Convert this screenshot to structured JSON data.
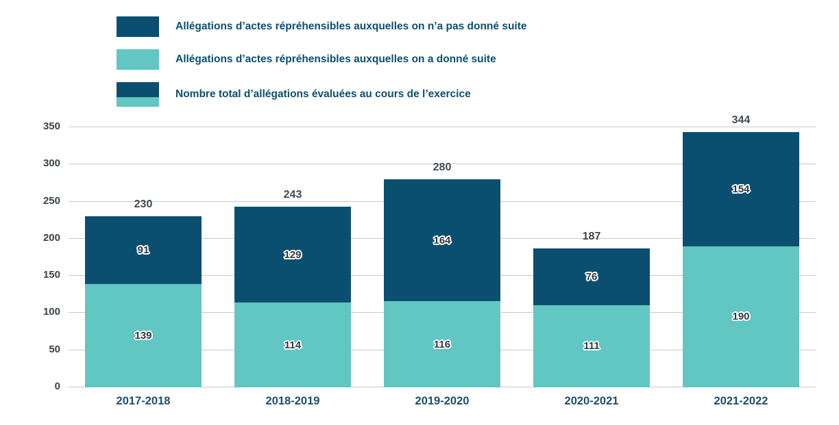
{
  "colors": {
    "dark_blue": "#0b4f70",
    "teal": "#62c6c3",
    "gridline": "#c9c9c9",
    "axis_text": "#3a4249",
    "total_text": "#3f4a52",
    "xlabel_text": "#1c4f68"
  },
  "legend": {
    "items": [
      {
        "label": "Allégations d’actes répréhensibles auxquelles on n’a pas donné suite",
        "swatch": "dark",
        "color": "#0b4f70"
      },
      {
        "label": "Allégations d’actes répréhensibles auxquelles on a donné suite",
        "swatch": "teal",
        "color": "#62c6c3"
      },
      {
        "label": "Nombre total d’allégations évaluées au cours de l’exercice",
        "swatch": "stacked",
        "colors": [
          "#0b4f70",
          "#62c6c3"
        ]
      }
    ]
  },
  "chart_data": {
    "type": "bar",
    "stacked": true,
    "title": "",
    "xlabel": "",
    "ylabel": "",
    "categories": [
      "2017-2018",
      "2018-2019",
      "2019-2020",
      "2020-2021",
      "2021-2022"
    ],
    "series": [
      {
        "name": "Allégations d’actes répréhensibles auxquelles on a donné suite",
        "color": "#62c6c3",
        "values": [
          139,
          114,
          116,
          111,
          190
        ]
      },
      {
        "name": "Allégations d’actes répréhensibles auxquelles on n’a pas donné suite",
        "color": "#0b4f70",
        "values": [
          91,
          129,
          164,
          76,
          154
        ]
      }
    ],
    "totals": [
      230,
      243,
      280,
      187,
      344
    ],
    "ylim": [
      0,
      350
    ],
    "yticks": [
      0,
      50,
      100,
      150,
      200,
      250,
      300,
      350
    ],
    "grid": true,
    "legend_position": "top-left"
  }
}
